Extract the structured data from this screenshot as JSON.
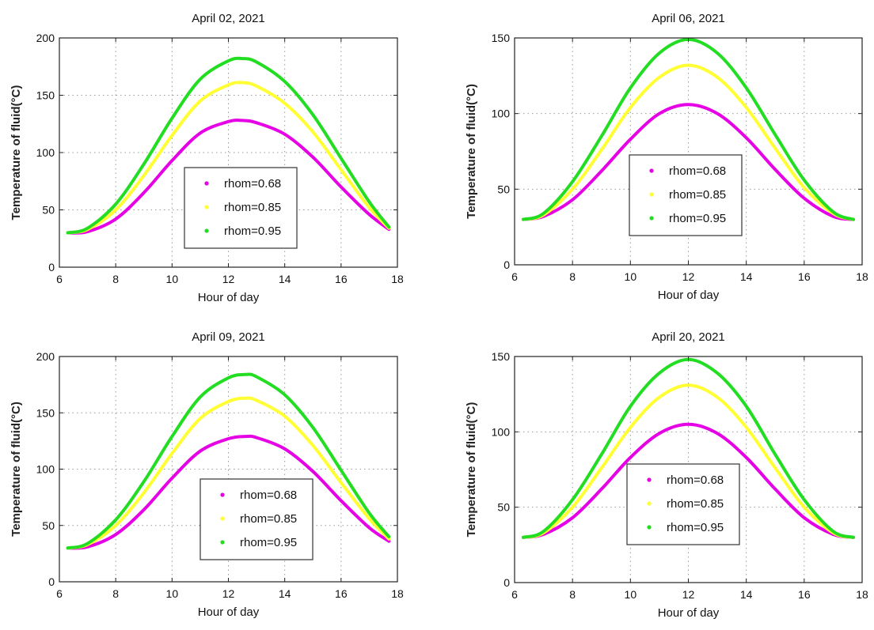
{
  "chart_data": [
    {
      "type": "line",
      "title": "April 02, 2021",
      "xlabel": "Hour of day",
      "ylabel": "Temperature of fluid(°C)",
      "xlim": [
        6,
        18
      ],
      "ylim": [
        0,
        200
      ],
      "xticks": [
        "6",
        "8",
        "10",
        "12",
        "14",
        "16",
        "18"
      ],
      "yticks": [
        "0",
        "50",
        "100",
        "150",
        "200"
      ],
      "grid": true,
      "legend_position": "center-lower",
      "series": [
        {
          "name": "rhom=0.68",
          "color": "#e600e6",
          "x": [
            6.3,
            7.0,
            8.0,
            9.0,
            10.0,
            11.0,
            12.0,
            12.5,
            13.0,
            14.0,
            15.0,
            16.0,
            17.0,
            17.7
          ],
          "y": [
            30,
            31,
            42,
            65,
            93,
            117,
            127,
            128,
            126,
            116,
            96,
            70,
            46,
            33
          ]
        },
        {
          "name": "rhom=0.85",
          "color": "#ffff33",
          "x": [
            6.3,
            7.0,
            8.0,
            9.0,
            10.0,
            11.0,
            12.0,
            12.5,
            13.0,
            14.0,
            15.0,
            16.0,
            17.0,
            17.7
          ],
          "y": [
            30,
            33,
            50,
            80,
            115,
            145,
            159,
            161,
            158,
            143,
            118,
            85,
            52,
            34
          ]
        },
        {
          "name": "rhom=0.95",
          "color": "#22dd22",
          "x": [
            6.3,
            7.0,
            8.0,
            9.0,
            10.0,
            11.0,
            12.0,
            12.5,
            13.0,
            14.0,
            15.0,
            16.0,
            17.0,
            17.7
          ],
          "y": [
            30,
            34,
            55,
            90,
            130,
            164,
            180,
            182,
            179,
            162,
            133,
            95,
            57,
            35
          ]
        }
      ]
    },
    {
      "type": "line",
      "title": "April 06, 2021",
      "xlabel": "Hour of day",
      "ylabel": "Temperature of fluid(°C)",
      "xlim": [
        6,
        18
      ],
      "ylim": [
        0,
        150
      ],
      "xticks": [
        "6",
        "8",
        "10",
        "12",
        "14",
        "16",
        "18"
      ],
      "yticks": [
        "0",
        "50",
        "100",
        "150"
      ],
      "grid": true,
      "legend_position": "center",
      "series": [
        {
          "name": "rhom=0.68",
          "color": "#e600e6",
          "x": [
            6.3,
            7.0,
            8.0,
            9.0,
            10.0,
            11.0,
            12.0,
            13.0,
            14.0,
            15.0,
            16.0,
            17.0,
            17.7
          ],
          "y": [
            30,
            32,
            43,
            62,
            83,
            100,
            106,
            100,
            84,
            63,
            44,
            32,
            30
          ]
        },
        {
          "name": "rhom=0.85",
          "color": "#ffff33",
          "x": [
            6.3,
            7.0,
            8.0,
            9.0,
            10.0,
            11.0,
            12.0,
            13.0,
            14.0,
            15.0,
            16.0,
            17.0,
            17.7
          ],
          "y": [
            30,
            33,
            50,
            76,
            104,
            124,
            132,
            124,
            104,
            77,
            51,
            34,
            30
          ]
        },
        {
          "name": "rhom=0.95",
          "color": "#22dd22",
          "x": [
            6.3,
            7.0,
            8.0,
            9.0,
            10.0,
            11.0,
            12.0,
            13.0,
            14.0,
            15.0,
            16.0,
            17.0,
            17.7
          ],
          "y": [
            30,
            34,
            55,
            85,
            117,
            140,
            149,
            140,
            117,
            86,
            56,
            35,
            30
          ]
        }
      ]
    },
    {
      "type": "line",
      "title": "April 09, 2021",
      "xlabel": "Hour of day",
      "ylabel": "Temperature of fluid(°C)",
      "xlim": [
        6,
        18
      ],
      "ylim": [
        0,
        200
      ],
      "xticks": [
        "6",
        "8",
        "10",
        "12",
        "14",
        "16",
        "18"
      ],
      "yticks": [
        "0",
        "50",
        "100",
        "150",
        "200"
      ],
      "grid": true,
      "legend_position": "center-lower",
      "series": [
        {
          "name": "rhom=0.68",
          "color": "#e600e6",
          "x": [
            6.3,
            7.0,
            8.0,
            9.0,
            10.0,
            11.0,
            12.0,
            12.6,
            13.0,
            14.0,
            15.0,
            16.0,
            17.0,
            17.7
          ],
          "y": [
            30,
            31,
            42,
            64,
            92,
            116,
            127,
            129,
            128,
            118,
            98,
            72,
            48,
            36
          ]
        },
        {
          "name": "rhom=0.85",
          "color": "#ffff33",
          "x": [
            6.3,
            7.0,
            8.0,
            9.0,
            10.0,
            11.0,
            12.0,
            12.6,
            13.0,
            14.0,
            15.0,
            16.0,
            17.0,
            17.7
          ],
          "y": [
            30,
            33,
            50,
            79,
            114,
            145,
            160,
            163,
            161,
            147,
            121,
            88,
            56,
            38
          ]
        },
        {
          "name": "rhom=0.95",
          "color": "#22dd22",
          "x": [
            6.3,
            7.0,
            8.0,
            9.0,
            10.0,
            11.0,
            12.0,
            12.6,
            13.0,
            14.0,
            15.0,
            16.0,
            17.0,
            17.7
          ],
          "y": [
            30,
            34,
            55,
            89,
            129,
            164,
            181,
            184,
            182,
            166,
            137,
            99,
            61,
            40
          ]
        }
      ]
    },
    {
      "type": "line",
      "title": "April 20, 2021",
      "xlabel": "Hour of day",
      "ylabel": "Temperature of fluid(°C)",
      "xlim": [
        6,
        18
      ],
      "ylim": [
        0,
        150
      ],
      "xticks": [
        "6",
        "8",
        "10",
        "12",
        "14",
        "16",
        "18"
      ],
      "yticks": [
        "0",
        "50",
        "100",
        "150"
      ],
      "grid": true,
      "legend_position": "center",
      "series": [
        {
          "name": "rhom=0.68",
          "color": "#e600e6",
          "x": [
            6.3,
            7.0,
            8.0,
            9.0,
            10.0,
            11.0,
            12.0,
            13.0,
            14.0,
            15.0,
            16.0,
            17.0,
            17.7
          ],
          "y": [
            30,
            32,
            43,
            62,
            83,
            99,
            105,
            99,
            83,
            62,
            43,
            32,
            30
          ]
        },
        {
          "name": "rhom=0.85",
          "color": "#ffff33",
          "x": [
            6.3,
            7.0,
            8.0,
            9.0,
            10.0,
            11.0,
            12.0,
            13.0,
            14.0,
            15.0,
            16.0,
            17.0,
            17.7
          ],
          "y": [
            30,
            33,
            50,
            76,
            103,
            123,
            131,
            123,
            103,
            76,
            50,
            33,
            30
          ]
        },
        {
          "name": "rhom=0.95",
          "color": "#22dd22",
          "x": [
            6.3,
            7.0,
            8.0,
            9.0,
            10.0,
            11.0,
            12.0,
            13.0,
            14.0,
            15.0,
            16.0,
            17.0,
            17.7
          ],
          "y": [
            30,
            34,
            55,
            85,
            117,
            139,
            148,
            139,
            117,
            85,
            55,
            34,
            30
          ]
        }
      ]
    }
  ]
}
